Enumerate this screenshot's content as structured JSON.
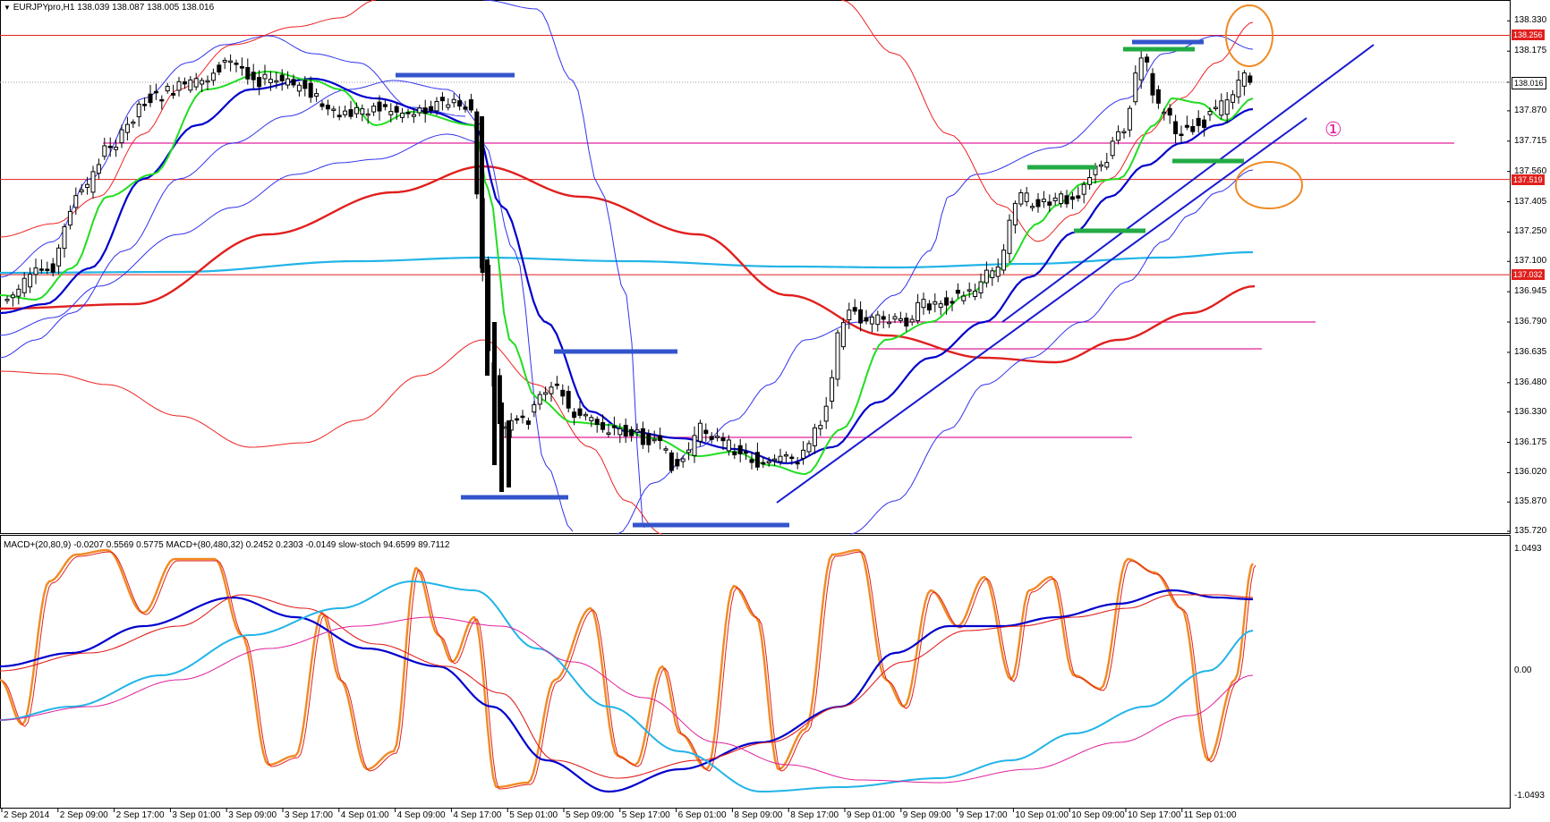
{
  "header": {
    "symbol_title": "EURJPYpro,H1",
    "ohlc": "138.039 138.087 138.005 138.016",
    "indicator_title": "MACD+(20,80,9) -0.0207 0.5569 0.5775  MACD+(80,480,32) 0.2452 0.2303 -0.0149  slow-stoch 94.6599 89.7112"
  },
  "price_axis": [
    "138.330",
    "138.175",
    "138.016",
    "137.870",
    "137.715",
    "137.560",
    "137.405",
    "137.250",
    "137.100",
    "136.945",
    "136.790",
    "136.635",
    "136.480",
    "136.330",
    "136.175",
    "136.020",
    "135.870",
    "135.720"
  ],
  "price_tags": [
    {
      "label": "138.256",
      "price": 138.256,
      "color": "#e0201e"
    },
    {
      "label": "138.016",
      "price": 138.016,
      "color": "#ffffff"
    },
    {
      "label": "137.519",
      "price": 137.519,
      "color": "#e0201e"
    },
    {
      "label": "137.032",
      "price": 137.032,
      "color": "#e0201e"
    }
  ],
  "indicator_axis": [
    "1.0493",
    "0.00",
    "-1.0493"
  ],
  "time_axis": [
    "2 Sep 2014",
    "2 Sep 09:00",
    "2 Sep 17:00",
    "3 Sep 01:00",
    "3 Sep 09:00",
    "3 Sep 17:00",
    "4 Sep 01:00",
    "4 Sep 09:00",
    "4 Sep 17:00",
    "5 Sep 01:00",
    "5 Sep 09:00",
    "5 Sep 17:00",
    "6 Sep 01:00",
    "8 Sep 09:00",
    "8 Sep 17:00",
    "9 Sep 01:00",
    "9 Sep 09:00",
    "9 Sep 17:00",
    "10 Sep 01:00",
    "10 Sep 09:00",
    "10 Sep 17:00",
    "11 Sep 01:00"
  ],
  "annotation": "①",
  "colors": {
    "hline": "#e0201e",
    "pink": "#e0209b",
    "green_ma": "#22dd22",
    "blue_ma": "#0000cc",
    "red_ma": "#e0201e",
    "cyan_ma": "#22b4e8",
    "bands_blue": "#3333ee",
    "bands_red": "#ee2222",
    "orange": "#f08a24",
    "dark_blue_mark": "#3355cc",
    "green_mark": "#22aa44"
  }
}
